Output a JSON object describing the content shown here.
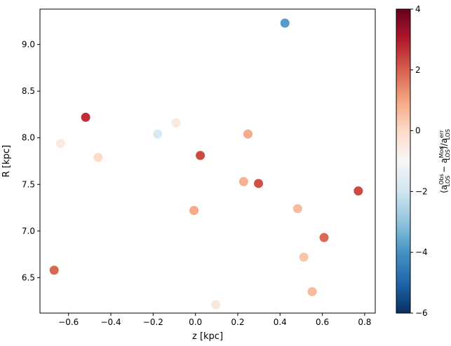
{
  "chart_data": {
    "type": "scatter",
    "xlabel": "z [kpc]",
    "ylabel": "R [kpc]",
    "xlim": [
      -0.735,
      0.85
    ],
    "ylim": [
      6.12,
      9.38
    ],
    "xticks": [
      -0.6,
      -0.4,
      -0.2,
      0.0,
      0.2,
      0.4,
      0.6,
      0.8
    ],
    "xtick_labels": [
      "−0.6",
      "−0.4",
      "−0.2",
      "0.0",
      "0.2",
      "0.4",
      "0.6",
      "0.8"
    ],
    "yticks": [
      6.5,
      7.0,
      7.5,
      8.0,
      8.5,
      9.0
    ],
    "ytick_labels": [
      "6.5",
      "7.0",
      "7.5",
      "8.0",
      "8.5",
      "9.0"
    ],
    "grid": false,
    "colorbar": {
      "colormap": "RdBu_r",
      "range": [
        -6,
        4
      ],
      "ticks": [
        -6,
        -4,
        -2,
        0,
        2,
        4
      ],
      "tick_labels": [
        "−6",
        "−4",
        "−2",
        "0",
        "2",
        "4"
      ],
      "label": {
        "open": "(a",
        "sup1": "Obs",
        "sub1": "LOS",
        "minus": " − a",
        "sup2": "Mod",
        "sub2": "LOS",
        "close": ")/a",
        "sup3": "err",
        "sub3": "LOS"
      },
      "stops": [
        "#053061",
        "#2166ac",
        "#4393c3",
        "#92c5de",
        "#d1e5f0",
        "#f7f7f7",
        "#fddbc7",
        "#f4a582",
        "#d6604d",
        "#b2182b",
        "#67001f"
      ]
    },
    "points": [
      {
        "x": 0.423,
        "y": 9.23,
        "c": -3.8
      },
      {
        "x": -0.519,
        "y": 8.22,
        "c": 2.7
      },
      {
        "x": -0.093,
        "y": 8.16,
        "c": -0.5
      },
      {
        "x": -0.179,
        "y": 8.04,
        "c": -1.8
      },
      {
        "x": 0.248,
        "y": 8.04,
        "c": 0.9
      },
      {
        "x": -0.638,
        "y": 7.94,
        "c": -0.5
      },
      {
        "x": -0.46,
        "y": 7.79,
        "c": 0.0
      },
      {
        "x": 0.023,
        "y": 7.81,
        "c": 2.3
      },
      {
        "x": 0.228,
        "y": 7.53,
        "c": 0.8
      },
      {
        "x": 0.298,
        "y": 7.51,
        "c": 2.2
      },
      {
        "x": 0.77,
        "y": 7.43,
        "c": 2.3
      },
      {
        "x": -0.007,
        "y": 7.22,
        "c": 0.9
      },
      {
        "x": 0.483,
        "y": 7.24,
        "c": 0.6
      },
      {
        "x": 0.608,
        "y": 6.93,
        "c": 1.9
      },
      {
        "x": 0.512,
        "y": 6.72,
        "c": 0.4
      },
      {
        "x": -0.668,
        "y": 6.58,
        "c": 1.9
      },
      {
        "x": 0.552,
        "y": 6.35,
        "c": 0.6
      },
      {
        "x": 0.096,
        "y": 6.21,
        "c": -0.4
      }
    ]
  }
}
